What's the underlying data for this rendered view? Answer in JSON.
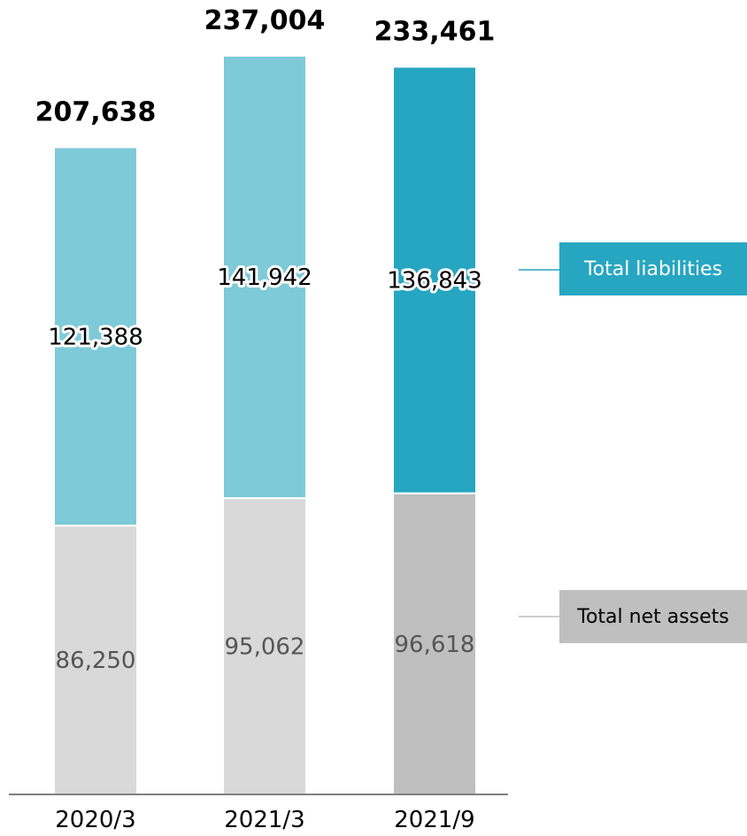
{
  "chart_data": {
    "type": "bar",
    "stacked": true,
    "categories": [
      "2020/3",
      "2021/3",
      "2021/9"
    ],
    "series": [
      {
        "name": "Total net assets",
        "values": [
          86250,
          95062,
          96618
        ],
        "colors": [
          "#d9d9d9",
          "#d9d9d9",
          "#bfbfbf"
        ]
      },
      {
        "name": "Total liabilities",
        "values": [
          121388,
          141942,
          136843
        ],
        "colors": [
          "#7ecad8",
          "#7ecad8",
          "#27a6c1"
        ]
      }
    ],
    "series_labels": [
      [
        "86,250",
        "95,062",
        "96,618"
      ],
      [
        "121,388",
        "141,942",
        "136,843"
      ]
    ],
    "totals": [
      "207,638",
      "237,004",
      "233,461"
    ],
    "legend": {
      "liabilities": {
        "label": "Total liabilities",
        "color": "#27a6c1",
        "text_color": "#ffffff"
      },
      "net_assets": {
        "label": "Total net assets",
        "color": "#bfbfbf",
        "text_color": "#000000"
      }
    },
    "ylim": [
      0,
      237004
    ],
    "grid": false
  }
}
